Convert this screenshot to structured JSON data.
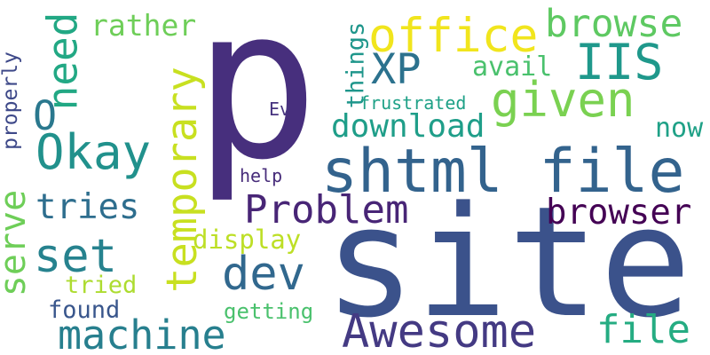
{
  "words": [
    {
      "text": "p",
      "color": "#472f7d",
      "vertical": false
    },
    {
      "text": "site",
      "color": "#3b528b",
      "vertical": false
    },
    {
      "text": "shtml file",
      "color": "#33638d",
      "vertical": false
    },
    {
      "text": "Awesome",
      "color": "#443a83",
      "vertical": false
    },
    {
      "text": "machine",
      "color": "#277f8e",
      "vertical": false
    },
    {
      "text": "temporary",
      "color": "#c8e020",
      "vertical": true
    },
    {
      "text": "Problem",
      "color": "#482576",
      "vertical": false
    },
    {
      "text": "office",
      "color": "#f1e51d",
      "vertical": false
    },
    {
      "text": "given",
      "color": "#7ad151",
      "vertical": false
    },
    {
      "text": "browse",
      "color": "#5ec962",
      "vertical": false
    },
    {
      "text": "IIS",
      "color": "#1f988b",
      "vertical": false
    },
    {
      "text": "XP",
      "color": "#2c728e",
      "vertical": false
    },
    {
      "text": "Okay",
      "color": "#21918c",
      "vertical": false
    },
    {
      "text": "need",
      "color": "#22a884",
      "vertical": true
    },
    {
      "text": "O",
      "color": "#2a788e",
      "vertical": false
    },
    {
      "text": "dev",
      "color": "#31688e",
      "vertical": false
    },
    {
      "text": "set",
      "color": "#26828e",
      "vertical": false
    },
    {
      "text": "serve",
      "color": "#6ece58",
      "vertical": true
    },
    {
      "text": "browser",
      "color": "#440154",
      "vertical": false
    },
    {
      "text": "file",
      "color": "#25ac82",
      "vertical": false
    },
    {
      "text": "tries",
      "color": "#2e6e8e",
      "vertical": false
    },
    {
      "text": "download",
      "color": "#1f9e89",
      "vertical": false
    },
    {
      "text": "display",
      "color": "#bddf26",
      "vertical": false
    },
    {
      "text": "rather",
      "color": "#6ece58",
      "vertical": false
    },
    {
      "text": "avail",
      "color": "#4ac16d",
      "vertical": false
    },
    {
      "text": "things",
      "color": "#1f968b",
      "vertical": true
    },
    {
      "text": "properly",
      "color": "#3e4989",
      "vertical": true
    },
    {
      "text": "now",
      "color": "#1fa187",
      "vertical": false
    },
    {
      "text": "tried",
      "color": "#addc30",
      "vertical": false
    },
    {
      "text": "found",
      "color": "#39568c",
      "vertical": false
    },
    {
      "text": "getting",
      "color": "#4ac16d",
      "vertical": false
    },
    {
      "text": "frustrated",
      "color": "#1fa187",
      "vertical": false
    },
    {
      "text": "help",
      "color": "#472c7a",
      "vertical": false
    },
    {
      "text": "Ev",
      "color": "#46337f",
      "vertical": false
    }
  ]
}
